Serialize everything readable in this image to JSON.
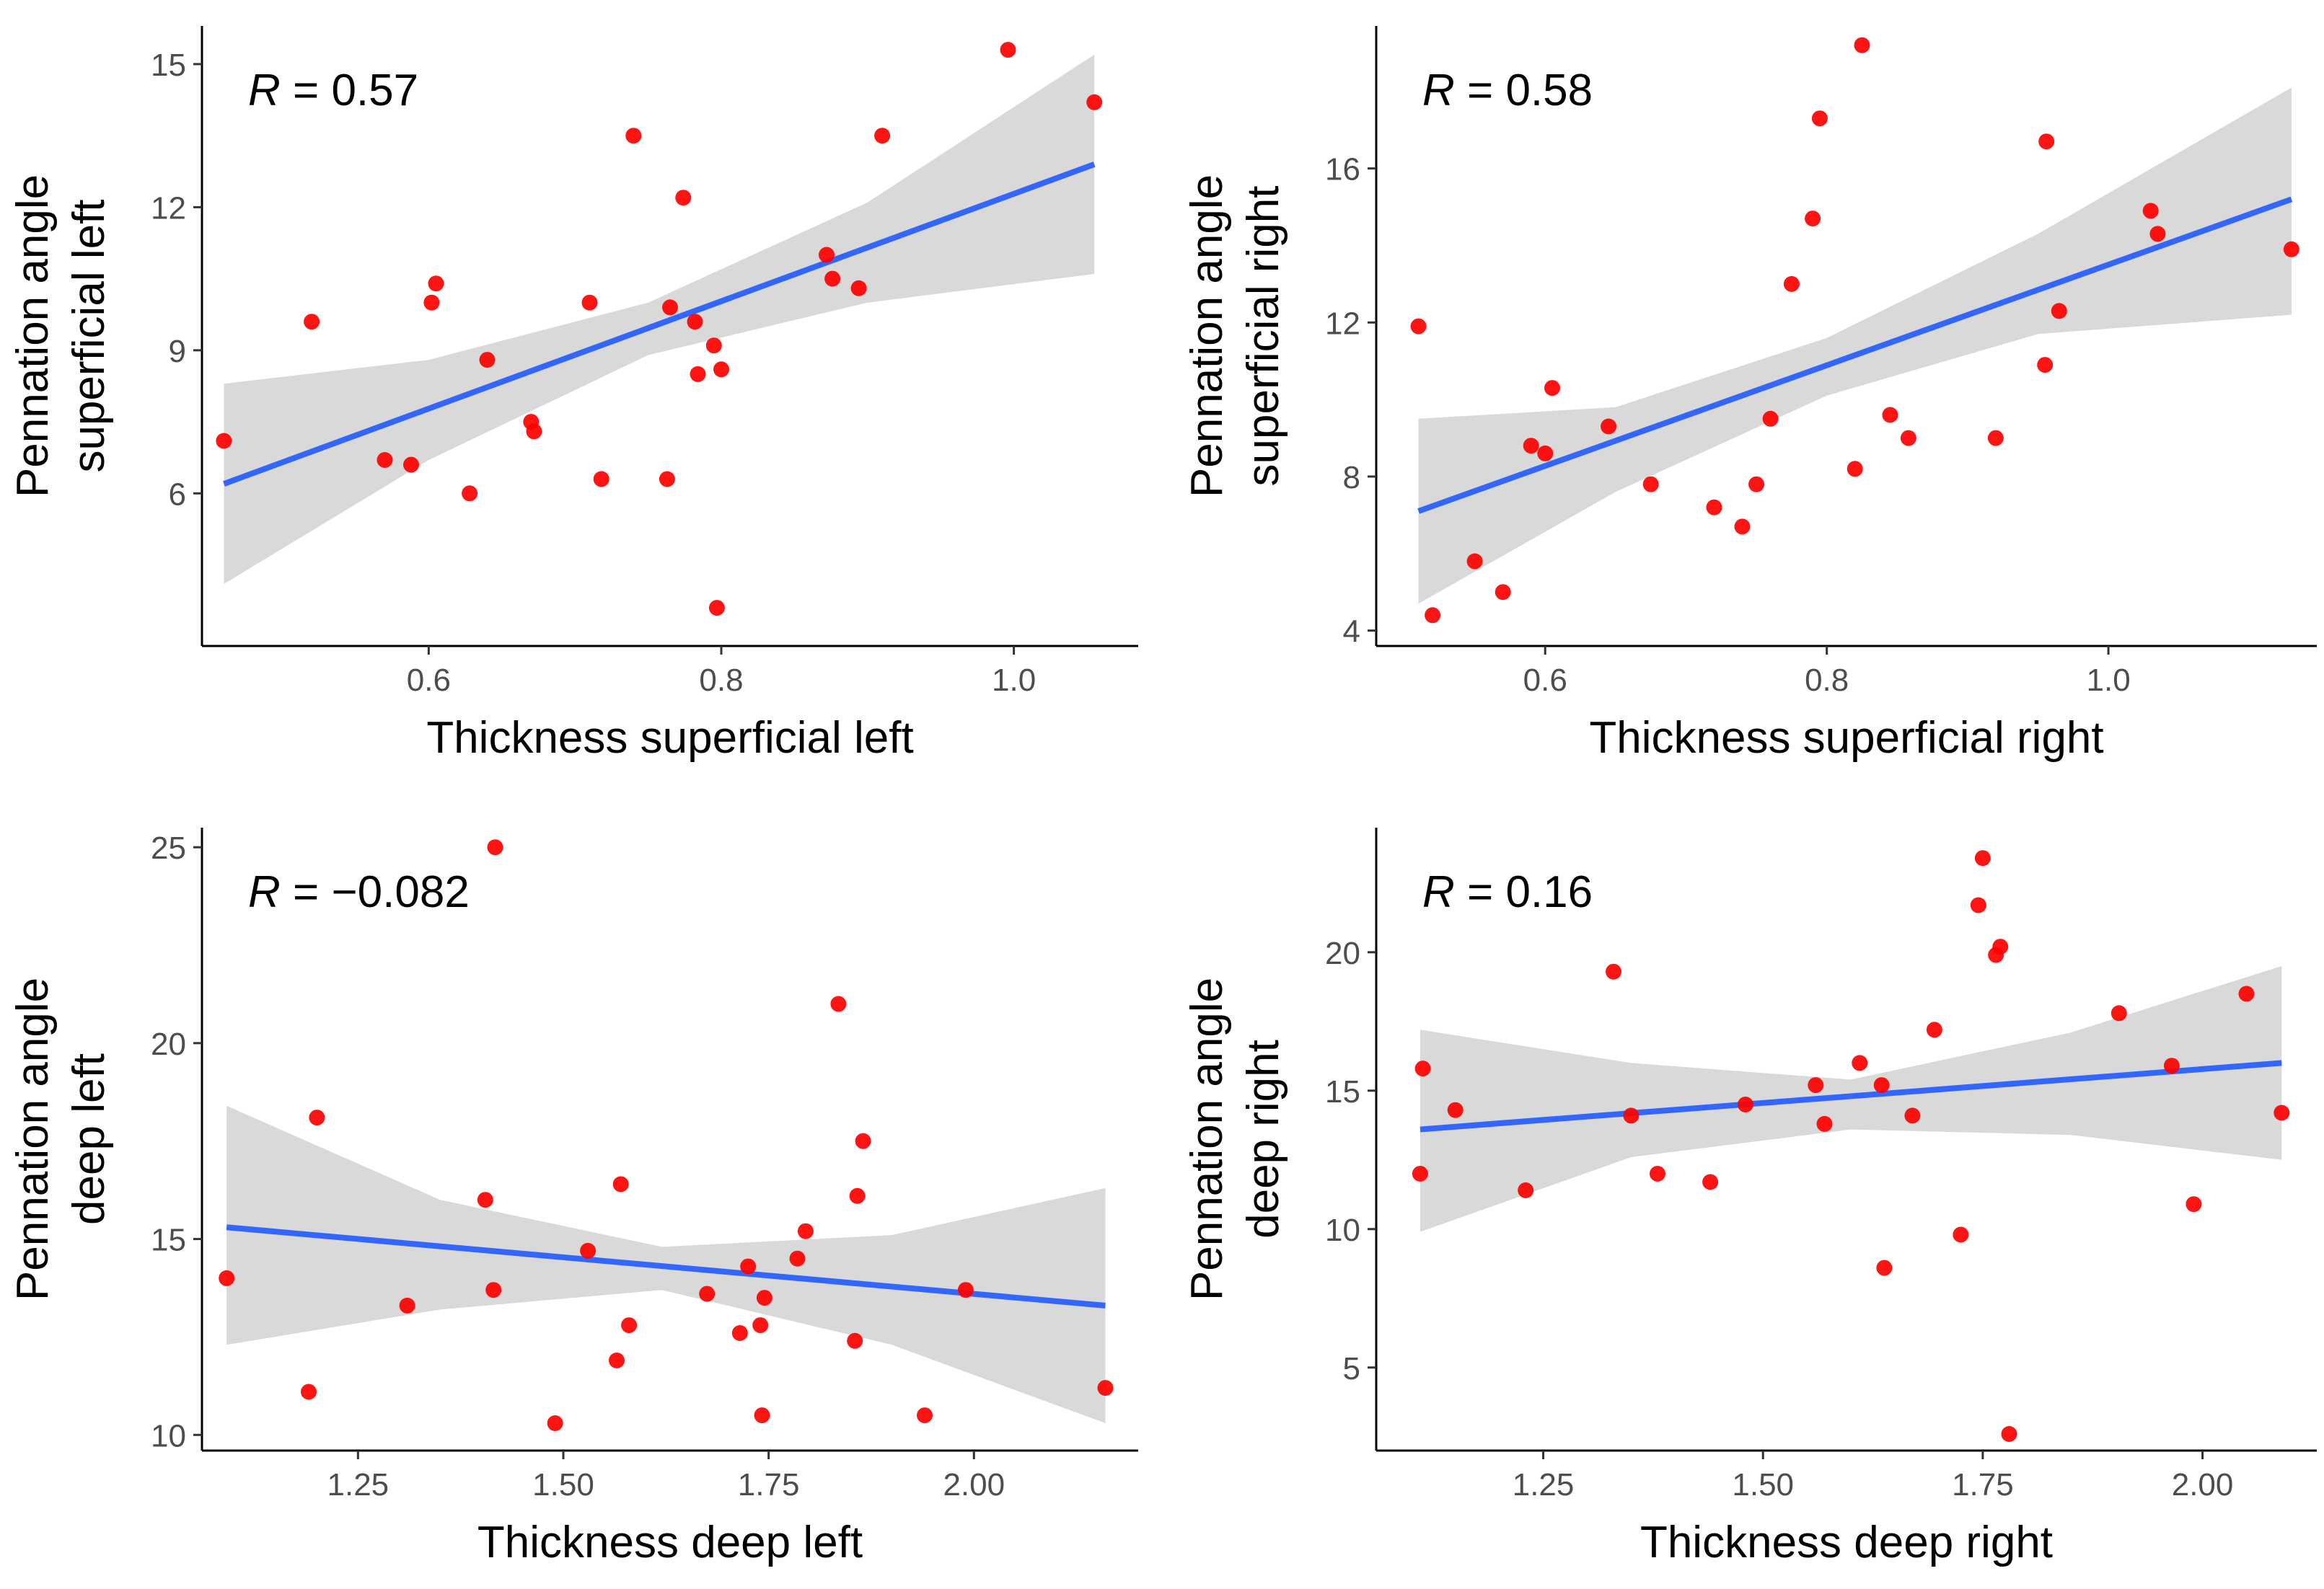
{
  "chart_data": [
    {
      "type": "scatter",
      "xlabel": "Thickness superficial left",
      "ylabel_lines": [
        "Pennation angle",
        "superficial left"
      ],
      "xlim": [
        0.445,
        1.085
      ],
      "ylim": [
        2.8,
        15.8
      ],
      "xticks": [
        0.6,
        0.8,
        1.0
      ],
      "xtick_labels": [
        "0.6",
        "0.8",
        "1.0"
      ],
      "yticks": [
        6,
        9,
        12,
        15
      ],
      "ytick_labels": [
        "6",
        "9",
        "12",
        "15"
      ],
      "r_label": {
        "italic": "R",
        "text": " = 0.57"
      },
      "trend": {
        "x": [
          0.46,
          1.055
        ],
        "y": [
          6.2,
          12.9
        ]
      },
      "band": {
        "x": [
          0.46,
          0.6,
          0.75,
          0.9,
          1.055
        ],
        "lower": [
          4.1,
          6.7,
          8.9,
          10.0,
          10.6
        ],
        "upper": [
          8.3,
          8.8,
          10.0,
          12.1,
          15.2
        ]
      },
      "points": [
        [
          0.46,
          7.1
        ],
        [
          0.52,
          9.6
        ],
        [
          0.57,
          6.7
        ],
        [
          0.588,
          6.6
        ],
        [
          0.602,
          10.0
        ],
        [
          0.605,
          10.4
        ],
        [
          0.628,
          6.0
        ],
        [
          0.64,
          8.8
        ],
        [
          0.67,
          7.5
        ],
        [
          0.672,
          7.3
        ],
        [
          0.71,
          10.0
        ],
        [
          0.718,
          6.3
        ],
        [
          0.74,
          13.5
        ],
        [
          0.763,
          6.3
        ],
        [
          0.765,
          9.9
        ],
        [
          0.774,
          12.2
        ],
        [
          0.782,
          9.6
        ],
        [
          0.784,
          8.5
        ],
        [
          0.795,
          9.1
        ],
        [
          0.797,
          3.6
        ],
        [
          0.8,
          8.6
        ],
        [
          0.872,
          11.0
        ],
        [
          0.876,
          10.5
        ],
        [
          0.894,
          10.3
        ],
        [
          0.91,
          13.5
        ],
        [
          0.996,
          15.3
        ],
        [
          1.055,
          14.2
        ]
      ]
    },
    {
      "type": "scatter",
      "xlabel": "Thickness superficial right",
      "ylabel_lines": [
        "Pennation angle",
        "superficial right"
      ],
      "xlim": [
        0.48,
        1.148
      ],
      "ylim": [
        3.6,
        19.7
      ],
      "xticks": [
        0.6,
        0.8,
        1.0
      ],
      "xtick_labels": [
        "0.6",
        "0.8",
        "1.0"
      ],
      "yticks": [
        4,
        8,
        12,
        16
      ],
      "ytick_labels": [
        "4",
        "8",
        "12",
        "16"
      ],
      "r_label": {
        "italic": "R",
        "text": " = 0.58"
      },
      "trend": {
        "x": [
          0.51,
          1.13
        ],
        "y": [
          7.1,
          15.2
        ]
      },
      "band": {
        "x": [
          0.51,
          0.65,
          0.8,
          0.95,
          1.13
        ],
        "lower": [
          4.7,
          7.6,
          10.1,
          11.7,
          12.2
        ],
        "upper": [
          9.5,
          9.8,
          11.6,
          14.3,
          18.1
        ]
      },
      "points": [
        [
          0.51,
          11.9
        ],
        [
          0.52,
          4.4
        ],
        [
          0.55,
          5.8
        ],
        [
          0.57,
          5.0
        ],
        [
          0.59,
          8.8
        ],
        [
          0.6,
          8.6
        ],
        [
          0.605,
          10.3
        ],
        [
          0.645,
          9.3
        ],
        [
          0.675,
          7.8
        ],
        [
          0.72,
          7.2
        ],
        [
          0.74,
          6.7
        ],
        [
          0.75,
          7.8
        ],
        [
          0.76,
          9.5
        ],
        [
          0.775,
          13.0
        ],
        [
          0.79,
          14.7
        ],
        [
          0.795,
          17.3
        ],
        [
          0.82,
          8.2
        ],
        [
          0.825,
          19.2
        ],
        [
          0.845,
          9.6
        ],
        [
          0.858,
          9.0
        ],
        [
          0.92,
          9.0
        ],
        [
          0.955,
          10.9
        ],
        [
          0.956,
          16.7
        ],
        [
          0.965,
          12.3
        ],
        [
          1.03,
          14.9
        ],
        [
          1.035,
          14.3
        ],
        [
          1.13,
          13.9
        ]
      ]
    },
    {
      "type": "scatter",
      "xlabel": "Thickness deep left",
      "ylabel_lines": [
        "Pennation angle",
        "deep left"
      ],
      "xlim": [
        1.06,
        2.2
      ],
      "ylim": [
        9.6,
        25.5
      ],
      "xticks": [
        1.25,
        1.5,
        1.75,
        2.0
      ],
      "xtick_labels": [
        "1.25",
        "1.50",
        "1.75",
        "2.00"
      ],
      "yticks": [
        10,
        15,
        20,
        25
      ],
      "ytick_labels": [
        "10",
        "15",
        "20",
        "25"
      ],
      "r_label": {
        "italic": "R",
        "text": " = −0.082"
      },
      "trend": {
        "x": [
          1.09,
          2.16
        ],
        "y": [
          15.3,
          13.3
        ]
      },
      "band": {
        "x": [
          1.09,
          1.35,
          1.62,
          1.9,
          2.16
        ],
        "lower": [
          12.3,
          13.2,
          13.7,
          12.3,
          10.3
        ],
        "upper": [
          18.4,
          16.0,
          14.8,
          15.1,
          16.3
        ]
      },
      "points": [
        [
          1.09,
          14.0
        ],
        [
          1.19,
          11.1
        ],
        [
          1.2,
          18.1
        ],
        [
          1.31,
          13.3
        ],
        [
          1.405,
          16.0
        ],
        [
          1.415,
          13.7
        ],
        [
          1.417,
          25.0
        ],
        [
          1.49,
          10.3
        ],
        [
          1.53,
          14.7
        ],
        [
          1.565,
          11.9
        ],
        [
          1.57,
          16.4
        ],
        [
          1.58,
          12.8
        ],
        [
          1.675,
          13.6
        ],
        [
          1.715,
          12.6
        ],
        [
          1.725,
          14.3
        ],
        [
          1.74,
          12.8
        ],
        [
          1.742,
          10.5
        ],
        [
          1.745,
          13.5
        ],
        [
          1.785,
          14.5
        ],
        [
          1.795,
          15.2
        ],
        [
          1.835,
          21.0
        ],
        [
          1.855,
          12.4
        ],
        [
          1.858,
          16.1
        ],
        [
          1.865,
          17.5
        ],
        [
          1.94,
          10.5
        ],
        [
          1.99,
          13.7
        ],
        [
          2.16,
          11.2
        ]
      ]
    },
    {
      "type": "scatter",
      "xlabel": "Thickness deep right",
      "ylabel_lines": [
        "Pennation angle",
        "deep right"
      ],
      "xlim": [
        1.06,
        2.13
      ],
      "ylim": [
        2.0,
        24.5
      ],
      "xticks": [
        1.25,
        1.5,
        1.75,
        2.0
      ],
      "xtick_labels": [
        "1.25",
        "1.50",
        "1.75",
        "2.00"
      ],
      "yticks": [
        5,
        10,
        15,
        20
      ],
      "ytick_labels": [
        "5",
        "10",
        "15",
        "20"
      ],
      "r_label": {
        "italic": "R",
        "text": " = 0.16"
      },
      "trend": {
        "x": [
          1.11,
          2.09
        ],
        "y": [
          13.6,
          16.0
        ]
      },
      "band": {
        "x": [
          1.11,
          1.35,
          1.6,
          1.85,
          2.09
        ],
        "lower": [
          9.9,
          12.6,
          13.6,
          13.4,
          12.5
        ],
        "upper": [
          17.2,
          16.0,
          15.4,
          17.1,
          19.5
        ]
      },
      "points": [
        [
          1.11,
          12.0
        ],
        [
          1.113,
          15.8
        ],
        [
          1.15,
          14.3
        ],
        [
          1.23,
          11.4
        ],
        [
          1.33,
          19.3
        ],
        [
          1.35,
          14.1
        ],
        [
          1.38,
          12.0
        ],
        [
          1.44,
          11.7
        ],
        [
          1.48,
          14.5
        ],
        [
          1.56,
          15.2
        ],
        [
          1.57,
          13.8
        ],
        [
          1.61,
          16.0
        ],
        [
          1.635,
          15.2
        ],
        [
          1.638,
          8.6
        ],
        [
          1.67,
          14.1
        ],
        [
          1.695,
          17.2
        ],
        [
          1.725,
          9.8
        ],
        [
          1.745,
          21.7
        ],
        [
          1.75,
          23.4
        ],
        [
          1.765,
          19.9
        ],
        [
          1.77,
          20.2
        ],
        [
          1.78,
          2.6
        ],
        [
          1.905,
          17.8
        ],
        [
          1.965,
          15.9
        ],
        [
          1.99,
          10.9
        ],
        [
          2.05,
          18.5
        ],
        [
          2.09,
          14.2
        ]
      ]
    }
  ],
  "colors": {
    "point": "#ff0000",
    "trend": "#3366ff",
    "band": "#d9d9d9"
  }
}
